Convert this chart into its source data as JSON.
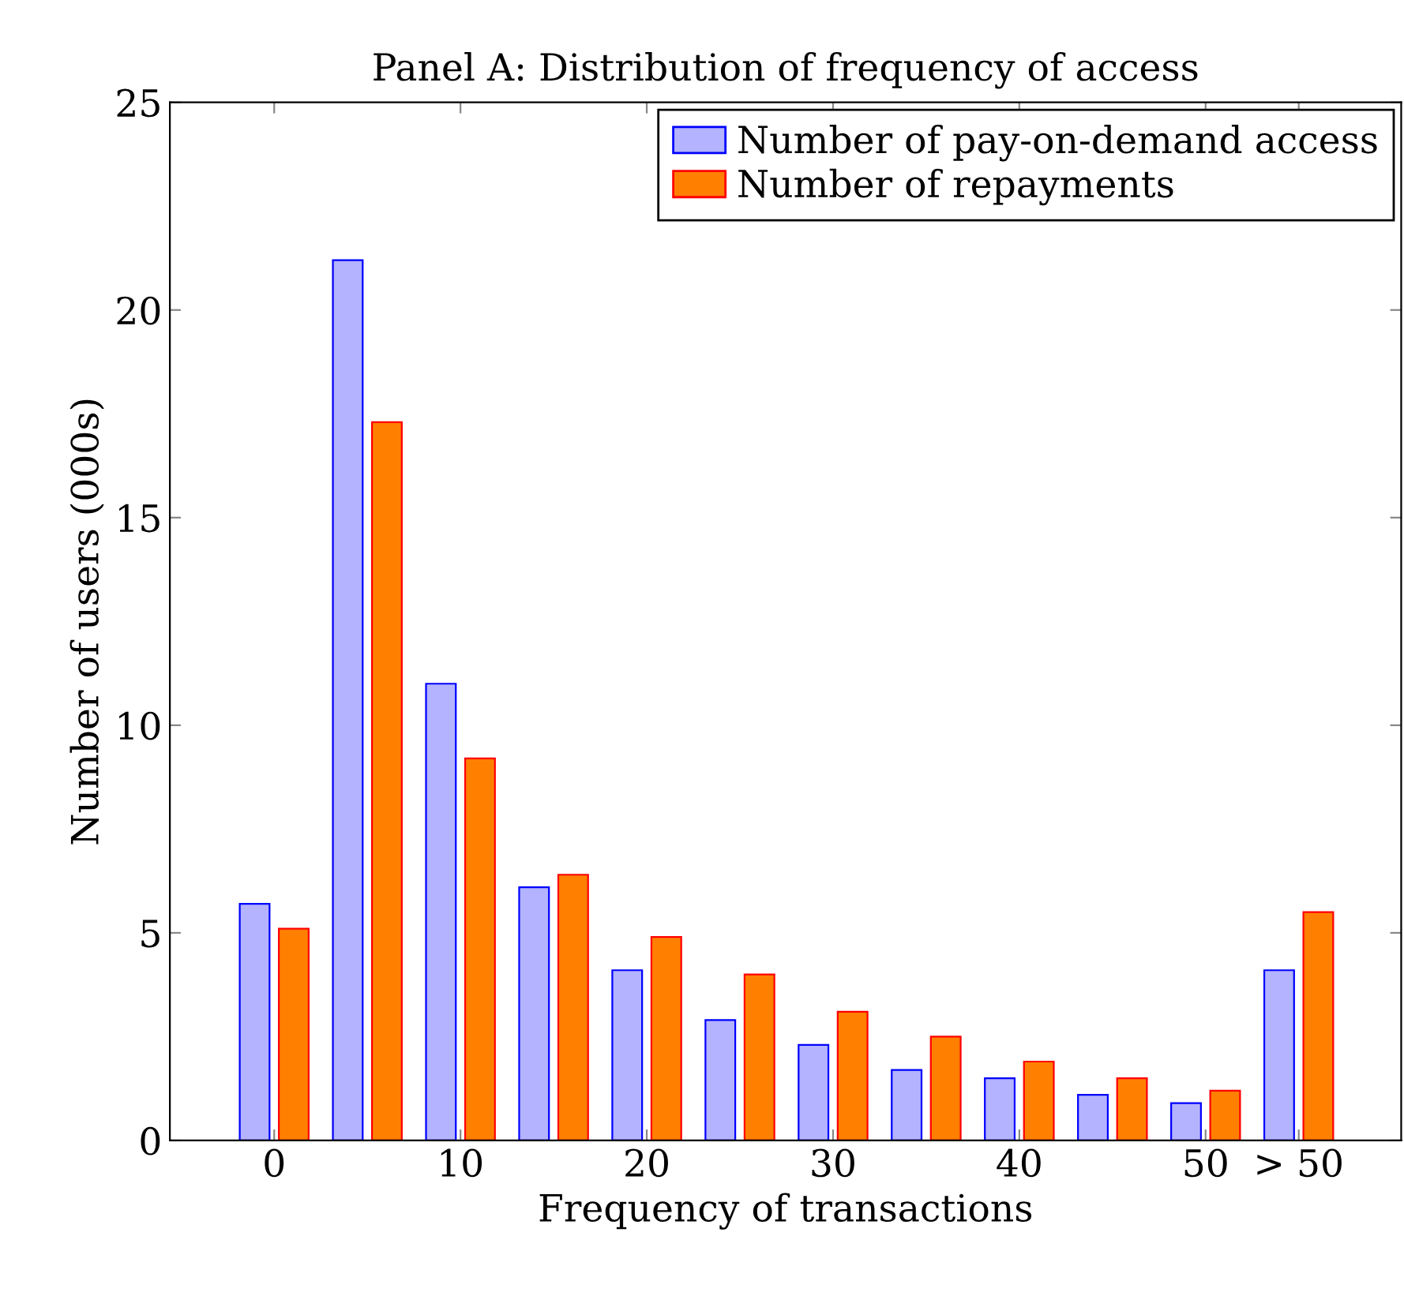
{
  "chart_data": {
    "type": "bar",
    "title": "Panel A: Distribution of frequency of access",
    "xlabel": "Frequency of transactions",
    "ylabel": "Number of users (000s)",
    "x": [
      0,
      5,
      10,
      15,
      20,
      25,
      30,
      35,
      40,
      45,
      50,
      55
    ],
    "series": [
      {
        "name": "Number of pay-on-demand access",
        "color": "#b3b3ff",
        "values": [
          5.7,
          21.2,
          11.0,
          6.1,
          4.1,
          2.9,
          2.3,
          1.7,
          1.5,
          1.1,
          0.9,
          4.1
        ]
      },
      {
        "name": "Number of repayments",
        "color": "#ff8000",
        "values": [
          5.1,
          17.3,
          9.2,
          6.4,
          4.9,
          4.0,
          3.1,
          2.5,
          1.9,
          1.5,
          1.2,
          5.5
        ]
      }
    ],
    "xlim": [
      -5.6,
      60.5
    ],
    "xticks": [
      0,
      10,
      20,
      30,
      40,
      50,
      {
        "value": 55,
        "label": "> 50"
      }
    ],
    "ylim": [
      0,
      25
    ],
    "yticks": [
      0,
      5,
      10,
      15,
      20,
      25
    ],
    "grid": false,
    "legend": "top right"
  }
}
